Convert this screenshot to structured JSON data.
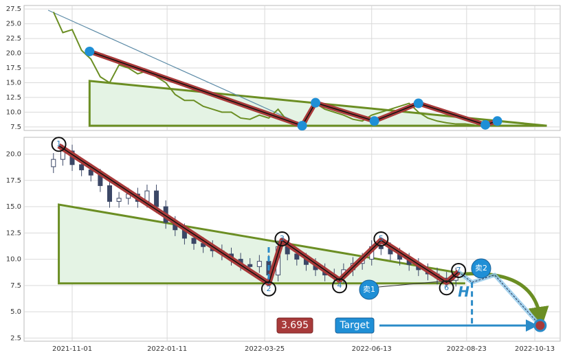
{
  "chart_data": [
    {
      "type": "line",
      "xlim": [
        "2021-09-26",
        "2022-11-01"
      ],
      "xticks": [
        "2021-11-01",
        "2022-01-11",
        "2022-03-25",
        "2022-06-13",
        "2022-08-23",
        "2022-10-13"
      ],
      "ylim": [
        6.9,
        28.1
      ],
      "yticks": [
        7.5,
        {
          "value": 10,
          "label": "10.0"
        },
        12.5,
        {
          "value": 15,
          "label": "15.0"
        },
        17.5,
        {
          "value": 20,
          "label": "20.0"
        },
        22.5,
        {
          "value": 25,
          "label": "25.0"
        },
        27.5
      ],
      "grid": true,
      "color": "#6b8e23",
      "x": [
        "2021-10-18",
        "2021-10-25",
        "2021-11-01",
        "2021-11-08",
        "2021-11-15",
        "2021-11-22",
        "2021-11-29",
        "2021-12-06",
        "2021-12-13",
        "2021-12-20",
        "2021-12-27",
        "2022-01-03",
        "2022-01-10",
        "2022-01-17",
        "2022-01-24",
        "2022-01-31",
        "2022-02-07",
        "2022-02-14",
        "2022-02-21",
        "2022-02-28",
        "2022-03-07",
        "2022-03-14",
        "2022-03-21",
        "2022-03-28",
        "2022-04-04",
        "2022-04-11",
        "2022-04-18",
        "2022-04-25",
        "2022-05-02",
        "2022-05-09",
        "2022-05-16",
        "2022-05-23",
        "2022-05-30",
        "2022-06-06",
        "2022-06-13",
        "2022-06-20",
        "2022-06-27",
        "2022-07-04",
        "2022-07-11",
        "2022-07-18",
        "2022-07-25",
        "2022-08-01",
        "2022-08-08",
        "2022-08-15",
        "2022-08-22",
        "2022-08-29"
      ],
      "values": [
        27,
        23.5,
        24,
        20.5,
        19,
        16,
        15,
        18,
        17.5,
        16.5,
        17,
        16,
        15,
        13,
        12,
        12,
        11,
        10.5,
        10,
        10,
        9,
        8.8,
        9.5,
        9,
        10.5,
        8.5,
        8,
        8.2,
        11.5,
        10.5,
        10,
        9.5,
        8.8,
        8.5,
        9.5,
        10,
        10.5,
        11,
        11.5,
        10,
        9,
        8.5,
        8.2,
        8,
        8,
        7.8
      ],
      "guide": {
        "x": [
          "2021-10-14",
          "2022-04-22"
        ],
        "values": [
          27.3,
          7.9
        ]
      },
      "zigzag": {
        "x": [
          "2021-11-14",
          "2022-04-22",
          "2022-05-02",
          "2022-06-15",
          "2022-07-18",
          "2022-09-06",
          "2022-09-15"
        ],
        "values": [
          20.3,
          7.7,
          11.6,
          8.5,
          11.5,
          7.85,
          8.5
        ]
      },
      "triangle": {
        "x": [
          "2021-11-14",
          "2022-10-22"
        ],
        "top": [
          15.3,
          7.7
        ],
        "base": 7.7
      }
    },
    {
      "type": "candlestick",
      "xlim": [
        "2021-09-26",
        "2022-11-01"
      ],
      "xticks": [
        "2021-11-01",
        "2022-01-11",
        "2022-03-25",
        "2022-06-13",
        "2022-08-23",
        "2022-10-13"
      ],
      "ylim": [
        2.2,
        21.6
      ],
      "yticks": [
        2.5,
        {
          "value": 5,
          "label": "5.0"
        },
        7.5,
        {
          "value": 10,
          "label": "10.0"
        },
        12.5,
        {
          "value": 15,
          "label": "15.0"
        },
        17.5,
        {
          "value": 20,
          "label": "20.0"
        }
      ],
      "grid": true,
      "color": "#3b4766",
      "x": [
        "2021-10-18",
        "2021-10-25",
        "2021-11-01",
        "2021-11-08",
        "2021-11-15",
        "2021-11-22",
        "2021-11-29",
        "2021-12-06",
        "2021-12-13",
        "2021-12-20",
        "2021-12-27",
        "2022-01-03",
        "2022-01-10",
        "2022-01-17",
        "2022-01-24",
        "2022-01-31",
        "2022-02-07",
        "2022-02-14",
        "2022-02-21",
        "2022-02-28",
        "2022-03-07",
        "2022-03-14",
        "2022-03-21",
        "2022-03-28",
        "2022-04-04",
        "2022-04-11",
        "2022-04-18",
        "2022-04-25",
        "2022-05-02",
        "2022-05-09",
        "2022-05-16",
        "2022-05-23",
        "2022-05-30",
        "2022-06-06",
        "2022-06-13",
        "2022-06-20",
        "2022-06-27",
        "2022-07-04",
        "2022-07-11",
        "2022-07-18",
        "2022-07-25",
        "2022-08-01",
        "2022-08-08",
        "2022-08-15"
      ],
      "open": [
        18.8,
        19.5,
        20.3,
        19,
        18.5,
        18,
        17,
        15.5,
        15.8,
        16.2,
        15.5,
        16.5,
        15,
        13.5,
        12.8,
        12,
        11.5,
        11.2,
        10.8,
        10.5,
        10,
        9.5,
        9.3,
        9.8,
        8.5,
        11.2,
        10.5,
        10,
        9.5,
        9,
        8.5,
        8.3,
        9,
        9.6,
        10,
        11.2,
        11,
        10.5,
        10,
        9.5,
        9,
        8.6,
        8.2,
        8
      ],
      "high": [
        20.1,
        20.9,
        20.9,
        19.6,
        19.1,
        18.6,
        17.6,
        16.4,
        16.8,
        16.8,
        17.1,
        17.1,
        15.6,
        14.1,
        13.4,
        12.6,
        12.1,
        11.8,
        11.4,
        11.1,
        10.6,
        10.1,
        10.4,
        10.4,
        11.8,
        11.8,
        11.1,
        10.6,
        10.1,
        9.6,
        9.1,
        9.6,
        10.2,
        10.6,
        11.8,
        11.8,
        11.6,
        11.1,
        10.6,
        10.1,
        9.6,
        9.2,
        8.8,
        9.2
      ],
      "low": [
        18.2,
        18.9,
        18.4,
        17.9,
        17.4,
        16.4,
        14.9,
        14.9,
        15.2,
        14.9,
        14.9,
        14.4,
        12.9,
        12.2,
        11.4,
        10.9,
        10.6,
        10.2,
        9.9,
        9.4,
        8.9,
        8.7,
        8.7,
        7.9,
        7.9,
        9.9,
        9.4,
        8.9,
        8.4,
        7.9,
        7.7,
        7.7,
        8.4,
        9.0,
        9.4,
        10.4,
        9.9,
        9.4,
        8.9,
        8.4,
        8.0,
        7.6,
        7.4,
        7.4
      ],
      "close": [
        19.5,
        20.3,
        19,
        18.5,
        18,
        17,
        15.5,
        15.8,
        16.2,
        15.5,
        16.5,
        15,
        13.5,
        12.8,
        12,
        11.5,
        11.2,
        10.8,
        10.5,
        10,
        9.5,
        9.3,
        9.8,
        8.5,
        11.2,
        10.5,
        10,
        9.5,
        9,
        8.5,
        8.3,
        9,
        9.6,
        10,
        11.2,
        11,
        10.5,
        10,
        9.5,
        9,
        8.6,
        8.2,
        8,
        8.6
      ],
      "zigzag": {
        "x": [
          "2021-10-22",
          "2022-03-28",
          "2022-04-07",
          "2022-05-20",
          "2022-06-20",
          "2022-08-08",
          "2022-08-17"
        ],
        "values": [
          20.8,
          7.7,
          11.8,
          8.0,
          11.8,
          7.8,
          8.8
        ],
        "labels": [
          "1",
          "2",
          "3",
          "4",
          "5",
          "6",
          "7"
        ]
      },
      "triangle": {
        "x": [
          "2021-10-22",
          "2022-08-22"
        ],
        "top": [
          15.2,
          8.6
        ],
        "base": 7.7
      },
      "projection": {
        "x": [
          "2022-08-17",
          "2022-08-27",
          "2022-09-13",
          "2022-10-17"
        ],
        "values": [
          8.8,
          7.8,
          8.5,
          3.695
        ]
      },
      "target": 3.695,
      "target_label": "Target",
      "sell_1": "卖1",
      "sell_2": "卖2",
      "h_label": "H"
    }
  ]
}
